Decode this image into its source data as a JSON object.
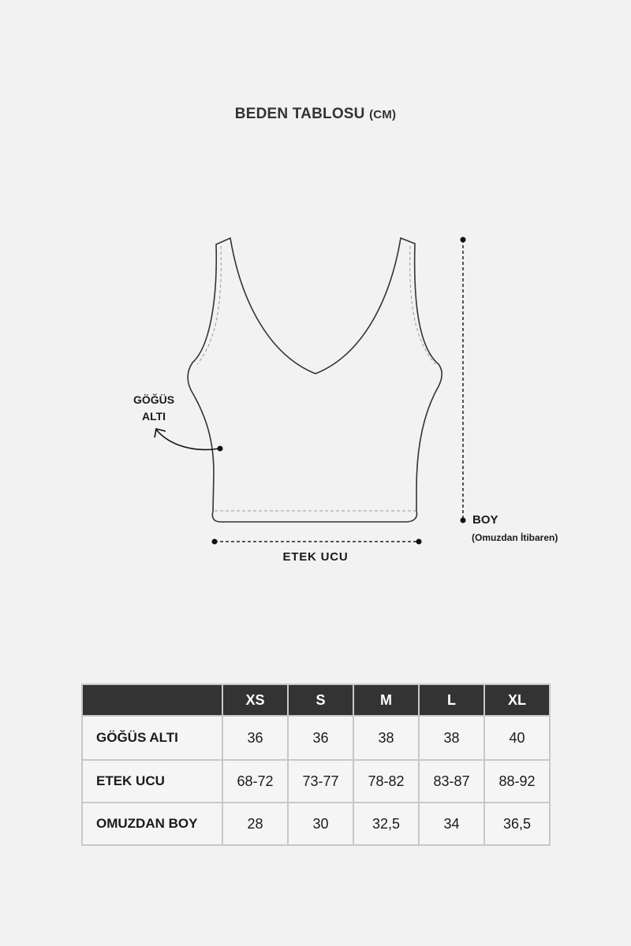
{
  "title": {
    "main": "BEDEN TABLOSU",
    "unit": "(CM)"
  },
  "diagram": {
    "gogus_label_line1": "GÖĞÜS",
    "gogus_label_line2": "ALTI",
    "etek_label": "ETEK UCU",
    "boy_label": "BOY",
    "boy_sublabel": "(Omuzdan İtibaren)"
  },
  "table": {
    "headers": [
      "",
      "XS",
      "S",
      "M",
      "L",
      "XL"
    ],
    "rows": [
      {
        "label": "GÖĞÜS ALTI",
        "values": [
          "36",
          "36",
          "38",
          "38",
          "40"
        ]
      },
      {
        "label": "ETEK UCU",
        "values": [
          "68-72",
          "73-77",
          "78-82",
          "83-87",
          "88-92"
        ]
      },
      {
        "label": "OMUZDAN BOY",
        "values": [
          "28",
          "30",
          "32,5",
          "34",
          "36,5"
        ]
      }
    ]
  },
  "colors": {
    "background": "#f2f2f2",
    "header": "#333333",
    "grid": "#c8c8c8"
  }
}
